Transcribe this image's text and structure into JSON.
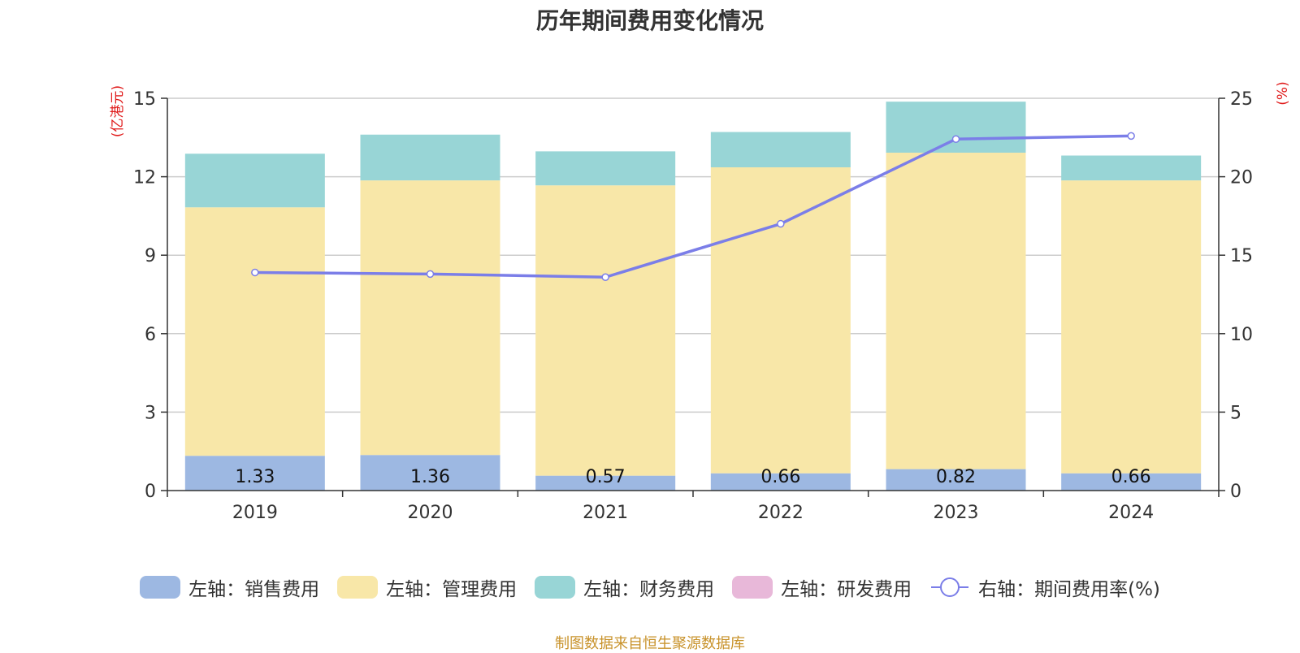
{
  "title": "历年期间费用变化情况",
  "source": "制图数据来自恒生聚源数据库",
  "chart_data": {
    "type": "bar",
    "stacked": true,
    "categories": [
      "2019",
      "2020",
      "2021",
      "2022",
      "2023",
      "2024"
    ],
    "y_left": {
      "unit": "(亿港元)",
      "ylim": [
        0,
        15
      ],
      "ticks": [
        0,
        3,
        6,
        9,
        12,
        15
      ]
    },
    "y_right": {
      "unit": "(%)",
      "ylim": [
        0,
        25
      ],
      "ticks": [
        0,
        5,
        10,
        15,
        20,
        25
      ]
    },
    "grid": true,
    "legend_position": "bottom",
    "series": [
      {
        "name": "左轴：销售费用",
        "axis": "left",
        "type": "bar",
        "color": "#9db8e2",
        "values": [
          1.33,
          1.36,
          0.57,
          0.66,
          0.82,
          0.66
        ],
        "labels": [
          "1.33",
          "1.36",
          "0.57",
          "0.66",
          "0.82",
          "0.66"
        ]
      },
      {
        "name": "左轴：管理费用",
        "axis": "left",
        "type": "bar",
        "color": "#f8e7a8",
        "values": [
          9.5,
          10.5,
          11.1,
          11.7,
          12.1,
          11.2
        ]
      },
      {
        "name": "左轴：财务费用",
        "axis": "left",
        "type": "bar",
        "color": "#98d5d6",
        "values": [
          2.05,
          1.75,
          1.3,
          1.35,
          1.95,
          0.95
        ]
      },
      {
        "name": "左轴：研发费用",
        "axis": "left",
        "type": "bar",
        "color": "#e8b8d9",
        "values": [
          0,
          0,
          0,
          0,
          0,
          0
        ]
      },
      {
        "name": "右轴：期间费用率(%)",
        "axis": "right",
        "type": "line",
        "color": "#7b7ee8",
        "values": [
          13.9,
          13.8,
          13.6,
          17.0,
          22.4,
          22.6
        ]
      }
    ]
  }
}
